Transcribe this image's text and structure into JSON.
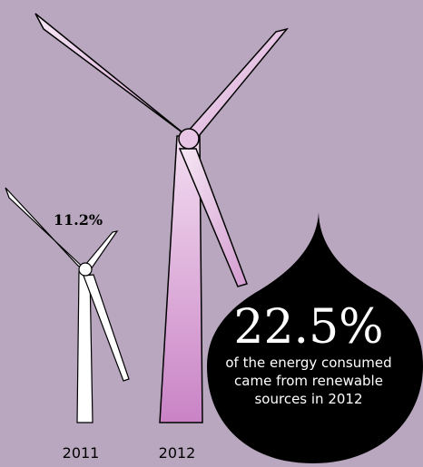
{
  "colors": {
    "background": "#b9a7bf",
    "turbine_2011": "#ffffff",
    "turbine_2012_light": "#f6e8f5",
    "turbine_2012_dark": "#d39bd0",
    "drop": "#000000",
    "text_dark": "#000000",
    "text_light": "#ffffff"
  },
  "icons": {
    "turbine": "wind-turbine-icon",
    "callout": "drop-callout-icon"
  },
  "callout": {
    "value": "22.5%",
    "line1": "of the energy consumed",
    "line2": "came from renewable",
    "line3": "sources in 2012"
  },
  "chart_data": {
    "type": "bar",
    "categories": [
      "2011",
      "2012"
    ],
    "values": [
      11.2,
      22.5
    ],
    "unit": "%",
    "data_labels": [
      "11.2%",
      ""
    ]
  }
}
